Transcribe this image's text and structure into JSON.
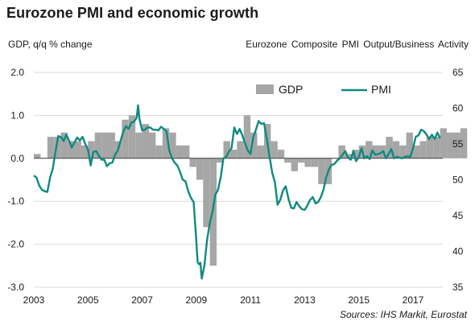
{
  "chart_data": {
    "type": "bar+line",
    "title": "Eurozone PMI and economic growth",
    "left_axis_label": "GDP, q/q % change",
    "right_axis_label": "Eurozone Composite PMI Output/Business Activity",
    "source": "Sources: IHS Markit, Eurostat",
    "left_ylim": [
      -3.0,
      2.0
    ],
    "left_ticks": [
      "2.0",
      "1.0",
      "0.0",
      "-1.0",
      "-2.0",
      "-3.0"
    ],
    "left_tick_values": [
      2,
      1,
      0,
      -1,
      -2,
      -3
    ],
    "right_ylim": [
      35,
      65
    ],
    "right_ticks": [
      "65",
      "60",
      "55",
      "50",
      "45",
      "40",
      "35"
    ],
    "right_tick_values": [
      65,
      60,
      55,
      50,
      45,
      40,
      35
    ],
    "xlim": [
      2003.0,
      2018.1
    ],
    "x_ticks": [
      "2003",
      "2005",
      "2007",
      "2009",
      "2011",
      "2013",
      "2015",
      "2017"
    ],
    "x_tick_values": [
      2003,
      2005,
      2007,
      2009,
      2011,
      2013,
      2015,
      2017
    ],
    "gridlines": "horizontal",
    "legend": {
      "position": "top-center",
      "entries": [
        "GDP",
        "PMI"
      ]
    },
    "colors": {
      "gdp": "#a6a6a6",
      "pmi": "#0f8a80",
      "grid": "#d9d9d9"
    },
    "series": [
      {
        "name": "GDP",
        "kind": "bar",
        "axis": "left",
        "quarter_start": 2003.0,
        "values": [
          0.1,
          0.0,
          0.5,
          0.5,
          0.6,
          0.4,
          0.4,
          0.3,
          0.4,
          0.6,
          0.6,
          0.6,
          0.4,
          0.9,
          1.0,
          0.6,
          0.8,
          0.6,
          0.3,
          0.7,
          0.6,
          0.3,
          0.3,
          -0.2,
          -0.5,
          -1.6,
          -2.5,
          -0.1,
          0.4,
          0.2,
          0.4,
          1.0,
          0.6,
          0.3,
          0.8,
          0.4,
          0.2,
          -0.1,
          -0.3,
          -0.1,
          -0.2,
          -0.2,
          -0.6,
          -0.6,
          0.0,
          0.3,
          0.1,
          0.2,
          0.3,
          0.4,
          0.3,
          0.3,
          0.5,
          0.4,
          0.3,
          0.6,
          0.3,
          0.4,
          0.5,
          0.5,
          0.7,
          0.6,
          0.6,
          0.7
        ]
      },
      {
        "name": "PMI",
        "kind": "line",
        "axis": "right",
        "points": [
          [
            2003.0,
            50.6
          ],
          [
            2003.1,
            50.3
          ],
          [
            2003.2,
            49.2
          ],
          [
            2003.3,
            48.6
          ],
          [
            2003.4,
            48.4
          ],
          [
            2003.5,
            48.3
          ],
          [
            2003.6,
            50.3
          ],
          [
            2003.7,
            51.5
          ],
          [
            2003.8,
            53.9
          ],
          [
            2003.9,
            56.1
          ],
          [
            2004.0,
            56.0
          ],
          [
            2004.1,
            55.4
          ],
          [
            2004.2,
            56.3
          ],
          [
            2004.3,
            55.5
          ],
          [
            2004.4,
            54.5
          ],
          [
            2004.5,
            55.2
          ],
          [
            2004.6,
            55.9
          ],
          [
            2004.7,
            55.5
          ],
          [
            2004.8,
            56.0
          ],
          [
            2004.9,
            55.0
          ],
          [
            2005.0,
            54.2
          ],
          [
            2005.1,
            52.0
          ],
          [
            2005.2,
            53.9
          ],
          [
            2005.3,
            54.0
          ],
          [
            2005.4,
            53.4
          ],
          [
            2005.5,
            52.8
          ],
          [
            2005.6,
            52.8
          ],
          [
            2005.7,
            51.9
          ],
          [
            2005.8,
            52.3
          ],
          [
            2005.9,
            52.4
          ],
          [
            2006.0,
            53.5
          ],
          [
            2006.1,
            54.1
          ],
          [
            2006.2,
            55.4
          ],
          [
            2006.3,
            56.7
          ],
          [
            2006.4,
            57.5
          ],
          [
            2006.5,
            57.1
          ],
          [
            2006.6,
            58.0
          ],
          [
            2006.7,
            58.1
          ],
          [
            2006.8,
            58.7
          ],
          [
            2006.85,
            60.4
          ],
          [
            2006.9,
            58.5
          ],
          [
            2007.0,
            56.9
          ],
          [
            2007.1,
            57.0
          ],
          [
            2007.2,
            57.3
          ],
          [
            2007.3,
            57.3
          ],
          [
            2007.4,
            57.0
          ],
          [
            2007.5,
            57.0
          ],
          [
            2007.6,
            56.9
          ],
          [
            2007.7,
            57.4
          ],
          [
            2007.8,
            57.1
          ],
          [
            2007.9,
            56.8
          ],
          [
            2008.0,
            54.1
          ],
          [
            2008.1,
            53.0
          ],
          [
            2008.2,
            52.4
          ],
          [
            2008.3,
            52.0
          ],
          [
            2008.4,
            51.1
          ],
          [
            2008.5,
            50.0
          ],
          [
            2008.6,
            49.8
          ],
          [
            2008.7,
            48.4
          ],
          [
            2008.8,
            47.5
          ],
          [
            2008.9,
            46.9
          ],
          [
            2009.0,
            41.4
          ],
          [
            2009.05,
            38.5
          ],
          [
            2009.1,
            38.2
          ],
          [
            2009.15,
            38.4
          ],
          [
            2009.2,
            36.2
          ],
          [
            2009.3,
            38.0
          ],
          [
            2009.4,
            41.7
          ],
          [
            2009.5,
            44.0
          ],
          [
            2009.6,
            45.6
          ],
          [
            2009.7,
            47.9
          ],
          [
            2009.8,
            48.6
          ],
          [
            2009.9,
            50.3
          ],
          [
            2010.0,
            53.0
          ],
          [
            2010.1,
            53.2
          ],
          [
            2010.2,
            53.9
          ],
          [
            2010.3,
            54.4
          ],
          [
            2010.4,
            57.3
          ],
          [
            2010.5,
            56.4
          ],
          [
            2010.6,
            57.1
          ],
          [
            2010.7,
            56.2
          ],
          [
            2010.8,
            55.1
          ],
          [
            2010.9,
            54.1
          ],
          [
            2011.0,
            53.6
          ],
          [
            2011.1,
            55.9
          ],
          [
            2011.2,
            57.0
          ],
          [
            2011.3,
            58.2
          ],
          [
            2011.4,
            57.8
          ],
          [
            2011.5,
            57.9
          ],
          [
            2011.6,
            55.8
          ],
          [
            2011.7,
            53.3
          ],
          [
            2011.8,
            51.0
          ],
          [
            2011.9,
            49.7
          ],
          [
            2012.0,
            46.5
          ],
          [
            2012.1,
            47.2
          ],
          [
            2012.2,
            48.5
          ],
          [
            2012.3,
            49.1
          ],
          [
            2012.4,
            47.4
          ],
          [
            2012.5,
            46.1
          ],
          [
            2012.6,
            46.0
          ],
          [
            2012.7,
            46.9
          ],
          [
            2012.8,
            46.3
          ],
          [
            2012.9,
            45.9
          ],
          [
            2013.0,
            45.8
          ],
          [
            2013.1,
            46.4
          ],
          [
            2013.2,
            47.2
          ],
          [
            2013.3,
            47.6
          ],
          [
            2013.4,
            46.7
          ],
          [
            2013.5,
            46.9
          ],
          [
            2013.6,
            47.6
          ],
          [
            2013.7,
            48.7
          ],
          [
            2013.8,
            50.4
          ],
          [
            2013.9,
            51.5
          ],
          [
            2014.0,
            52.1
          ],
          [
            2014.1,
            52.2
          ],
          [
            2014.2,
            52.7
          ],
          [
            2014.3,
            53.0
          ],
          [
            2014.4,
            53.5
          ],
          [
            2014.5,
            54.0
          ],
          [
            2014.6,
            53.1
          ],
          [
            2014.7,
            52.8
          ],
          [
            2014.8,
            54.0
          ],
          [
            2014.9,
            52.6
          ],
          [
            2015.0,
            53.2
          ],
          [
            2015.1,
            54.4
          ],
          [
            2015.2,
            53.0
          ],
          [
            2015.3,
            53.3
          ],
          [
            2015.4,
            52.9
          ],
          [
            2015.5,
            54.1
          ],
          [
            2015.6,
            53.5
          ],
          [
            2015.7,
            53.6
          ],
          [
            2015.8,
            53.7
          ],
          [
            2015.9,
            54.0
          ],
          [
            2016.0,
            53.0
          ],
          [
            2016.1,
            53.6
          ],
          [
            2016.2,
            54.3
          ],
          [
            2016.3,
            53.0
          ],
          [
            2016.4,
            53.2
          ],
          [
            2016.5,
            53.1
          ],
          [
            2016.6,
            53.0
          ],
          [
            2016.7,
            53.2
          ],
          [
            2016.8,
            53.3
          ],
          [
            2016.9,
            53.2
          ],
          [
            2017.0,
            54.4
          ],
          [
            2017.1,
            56.0
          ],
          [
            2017.2,
            56.2
          ],
          [
            2017.3,
            57.0
          ],
          [
            2017.4,
            56.8
          ],
          [
            2017.5,
            56.3
          ],
          [
            2017.6,
            55.7
          ],
          [
            2017.7,
            56.3
          ],
          [
            2017.8,
            55.7
          ],
          [
            2017.9,
            56.6
          ],
          [
            2018.0,
            55.8
          ]
        ]
      }
    ]
  }
}
